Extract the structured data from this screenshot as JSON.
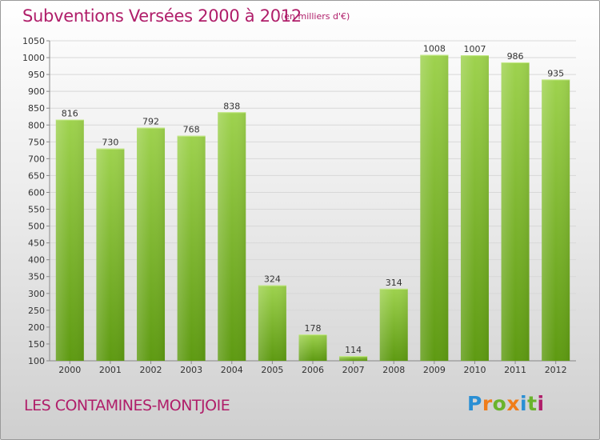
{
  "header": {
    "title": "Subventions Versées 2000 à 2012",
    "unit_note": "(en milliers d'€)"
  },
  "footer": {
    "commune": "LES CONTAMINES-MONTJOIE",
    "brand": [
      "P",
      "r",
      "o",
      "x",
      "i",
      "t",
      "i"
    ]
  },
  "colors": {
    "title": "#b01e6a",
    "bar_top": "#9ed24e",
    "bar_bottom": "#5e9a12",
    "grid": "#d8d8d8"
  },
  "chart_data": {
    "type": "bar",
    "title": "Subventions Versées 2000 à 2012",
    "xlabel": "",
    "ylabel": "",
    "categories": [
      "2000",
      "2001",
      "2002",
      "2003",
      "2004",
      "2005",
      "2006",
      "2007",
      "2008",
      "2009",
      "2010",
      "2011",
      "2012"
    ],
    "values": [
      816,
      730,
      792,
      768,
      838,
      324,
      178,
      114,
      314,
      1008,
      1007,
      986,
      935
    ],
    "ylim": [
      100,
      1050
    ],
    "yticks": [
      100,
      150,
      200,
      250,
      300,
      350,
      400,
      450,
      500,
      550,
      600,
      650,
      700,
      750,
      800,
      850,
      900,
      950,
      1000,
      1050
    ],
    "grid": true,
    "data_labels": true
  }
}
